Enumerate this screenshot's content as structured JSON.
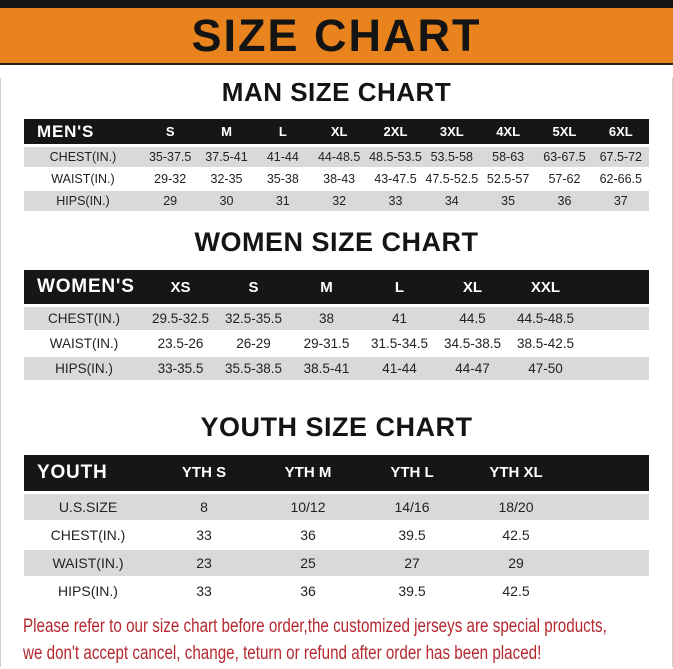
{
  "banner": {
    "title": "SIZE CHART"
  },
  "sections": [
    {
      "title": "MAN SIZE CHART",
      "corner_label": "MEN'S",
      "columns": [
        "S",
        "M",
        "L",
        "XL",
        "2XL",
        "3XL",
        "4XL",
        "5XL",
        "6XL"
      ],
      "rows": [
        {
          "label": "CHEST(IN.)",
          "values": [
            "35-37.5",
            "37.5-41",
            "41-44",
            "44-48.5",
            "48.5-53.5",
            "53.5-58",
            "58-63",
            "63-67.5",
            "67.5-72"
          ]
        },
        {
          "label": "WAIST(IN.)",
          "values": [
            "29-32",
            "32-35",
            "35-38",
            "38-43",
            "43-47.5",
            "47.5-52.5",
            "52.5-57",
            "57-62",
            "62-66.5"
          ]
        },
        {
          "label": "HIPS(IN.)",
          "values": [
            "29",
            "30",
            "31",
            "32",
            "33",
            "34",
            "35",
            "36",
            "37"
          ]
        }
      ]
    },
    {
      "title": "WOMEN SIZE CHART",
      "corner_label": "WOMEN'S",
      "columns": [
        "XS",
        "S",
        "M",
        "L",
        "XL",
        "XXL"
      ],
      "rows": [
        {
          "label": "CHEST(IN.)",
          "values": [
            "29.5-32.5",
            "32.5-35.5",
            "38",
            "41",
            "44.5",
            "44.5-48.5"
          ]
        },
        {
          "label": "WAIST(IN.)",
          "values": [
            "23.5-26",
            "26-29",
            "29-31.5",
            "31.5-34.5",
            "34.5-38.5",
            "38.5-42.5"
          ]
        },
        {
          "label": "HIPS(IN.)",
          "values": [
            "33-35.5",
            "35.5-38.5",
            "38.5-41",
            "41-44",
            "44-47",
            "47-50"
          ]
        }
      ]
    },
    {
      "title": "YOUTH SIZE CHART",
      "corner_label": "YOUTH",
      "columns": [
        "YTH S",
        "YTH M",
        "YTH L",
        "YTH XL"
      ],
      "rows": [
        {
          "label": "U.S.SIZE",
          "values": [
            "8",
            "10/12",
            "14/16",
            "18/20"
          ]
        },
        {
          "label": "CHEST(IN.)",
          "values": [
            "33",
            "36",
            "39.5",
            "42.5"
          ]
        },
        {
          "label": "WAIST(IN.)",
          "values": [
            "23",
            "25",
            "27",
            "29"
          ]
        },
        {
          "label": "HIPS(IN.)",
          "values": [
            "33",
            "36",
            "39.5",
            "42.5"
          ]
        }
      ]
    }
  ],
  "footer": {
    "line1": "Please refer to our size chart before order,the customized jerseys are special products,",
    "line2": "we don't accept cancel, change, teturn or refund after order has been placed!"
  },
  "colors": {
    "banner_orange": "#e9831e",
    "header_black": "#161616",
    "row_gray": "#d9d9d9",
    "note_red": "#b5282e"
  }
}
